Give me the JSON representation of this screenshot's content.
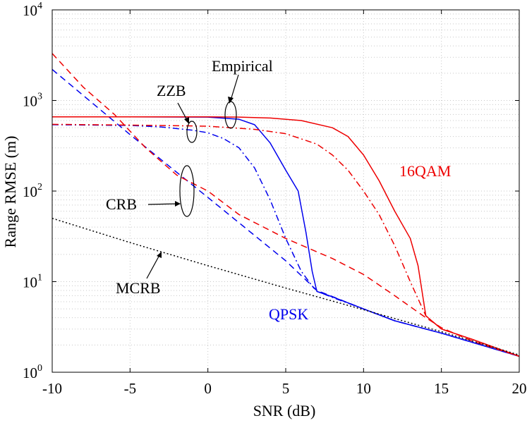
{
  "chart_data": {
    "type": "line",
    "y_scale": "log",
    "title": "",
    "xlabel": "SNR (dB)",
    "ylabel": "Range RMSE (m)",
    "xlim": [
      -10,
      20
    ],
    "ylim": [
      1,
      10000
    ],
    "grid": true,
    "x_ticks": [
      {
        "value": -10,
        "label": "-10"
      },
      {
        "value": -5,
        "label": "-5"
      },
      {
        "value": 0,
        "label": "0"
      },
      {
        "value": 5,
        "label": "5"
      },
      {
        "value": 10,
        "label": "10"
      },
      {
        "value": 15,
        "label": "15"
      },
      {
        "value": 20,
        "label": "20"
      }
    ],
    "y_ticks": [
      {
        "value": 1,
        "base": "10",
        "exp": "0"
      },
      {
        "value": 10,
        "base": "10",
        "exp": "1"
      },
      {
        "value": 100,
        "base": "10",
        "exp": "2"
      },
      {
        "value": 1000,
        "base": "10",
        "exp": "3"
      },
      {
        "value": 10000,
        "base": "10",
        "exp": "4"
      }
    ],
    "colors": {
      "qpsk": "#0000ee",
      "qam16": "#ee0000",
      "mcrb": "#000000",
      "axis": "#000000",
      "grid": "#c8c8c8"
    },
    "series": [
      {
        "name": "QPSK Empirical",
        "color": "#0000ee",
        "dash": "solid",
        "points": [
          [
            -10,
            660
          ],
          [
            -5,
            660
          ],
          [
            0,
            655
          ],
          [
            2,
            620
          ],
          [
            3,
            540
          ],
          [
            4,
            340
          ],
          [
            5,
            170
          ],
          [
            5.8,
            100
          ],
          [
            6.3,
            35
          ],
          [
            6.7,
            13
          ],
          [
            7,
            7.8
          ],
          [
            8,
            6.8
          ],
          [
            10,
            5.0
          ],
          [
            12,
            3.7
          ],
          [
            15,
            2.7
          ],
          [
            20,
            1.5
          ]
        ]
      },
      {
        "name": "QPSK ZZB",
        "color": "#0000ee",
        "dash": "dashdot",
        "points": [
          [
            -10,
            540
          ],
          [
            -5,
            530
          ],
          [
            -3,
            510
          ],
          [
            -1,
            470
          ],
          [
            0,
            440
          ],
          [
            1,
            380
          ],
          [
            2,
            300
          ],
          [
            3,
            180
          ],
          [
            4,
            80
          ],
          [
            5,
            30
          ],
          [
            6,
            13
          ],
          [
            6.8,
            8.5
          ],
          [
            7.2,
            7.6
          ],
          [
            8,
            6.7
          ],
          [
            10,
            5.0
          ],
          [
            12,
            3.7
          ],
          [
            15,
            2.7
          ],
          [
            20,
            1.5
          ]
        ]
      },
      {
        "name": "QPSK CRB",
        "color": "#0000ee",
        "dash": "dashed",
        "points": [
          [
            -10,
            2200
          ],
          [
            -5,
            420
          ],
          [
            0,
            85
          ],
          [
            5,
            17
          ],
          [
            7,
            8
          ],
          [
            10,
            5
          ],
          [
            12,
            3.7
          ],
          [
            15,
            2.7
          ],
          [
            20,
            1.5
          ]
        ]
      },
      {
        "name": "16QAM Empirical",
        "color": "#ee0000",
        "dash": "solid",
        "points": [
          [
            -10,
            660
          ],
          [
            -5,
            660
          ],
          [
            0,
            660
          ],
          [
            2,
            655
          ],
          [
            4,
            640
          ],
          [
            6,
            600
          ],
          [
            8,
            500
          ],
          [
            9,
            400
          ],
          [
            10,
            250
          ],
          [
            11,
            130
          ],
          [
            12,
            60
          ],
          [
            13,
            30
          ],
          [
            13.5,
            15
          ],
          [
            14,
            4.2
          ],
          [
            15,
            3.0
          ],
          [
            17,
            2.3
          ],
          [
            20,
            1.5
          ]
        ]
      },
      {
        "name": "16QAM ZZB",
        "color": "#ee0000",
        "dash": "dashdot",
        "points": [
          [
            -10,
            545
          ],
          [
            -5,
            535
          ],
          [
            0,
            520
          ],
          [
            3,
            480
          ],
          [
            5,
            430
          ],
          [
            7,
            330
          ],
          [
            8,
            250
          ],
          [
            9,
            170
          ],
          [
            10,
            100
          ],
          [
            11,
            55
          ],
          [
            12,
            25
          ],
          [
            13,
            10
          ],
          [
            14,
            4.2
          ],
          [
            15,
            3.0
          ],
          [
            17,
            2.3
          ],
          [
            20,
            1.5
          ]
        ]
      },
      {
        "name": "16QAM CRB",
        "color": "#ee0000",
        "dash": "dashed",
        "points": [
          [
            -10,
            3300
          ],
          [
            -8,
            1400
          ],
          [
            -6,
            700
          ],
          [
            -4,
            300
          ],
          [
            -2,
            150
          ],
          [
            0,
            100
          ],
          [
            2,
            55
          ],
          [
            5,
            30
          ],
          [
            8,
            18
          ],
          [
            10,
            12
          ],
          [
            12,
            7
          ],
          [
            14,
            4
          ],
          [
            15,
            3.1
          ],
          [
            17,
            2.2
          ],
          [
            20,
            1.5
          ]
        ]
      },
      {
        "name": "MCRB",
        "color": "#000000",
        "dash": "dotted",
        "points": [
          [
            -10,
            50
          ],
          [
            -5,
            27
          ],
          [
            0,
            15
          ],
          [
            5,
            8.5
          ],
          [
            10,
            4.9
          ],
          [
            15,
            2.8
          ],
          [
            20,
            1.55
          ]
        ]
      }
    ],
    "annotations": {
      "empirical": "Empirical",
      "zzb": "ZZB",
      "crb": "CRB",
      "mcrb": "MCRB",
      "qpsk": "QPSK",
      "qam16": "16QAM"
    }
  }
}
